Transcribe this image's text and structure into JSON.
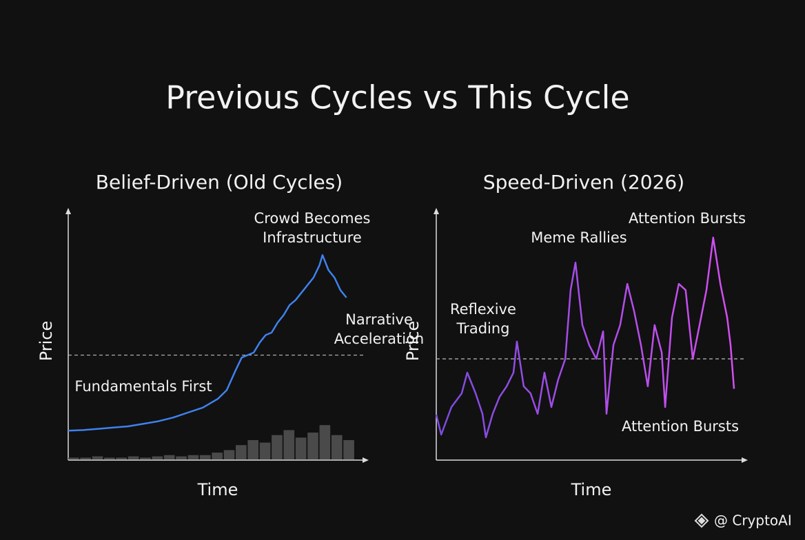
{
  "title": "Previous Cycles vs This Cycle",
  "watermark": "@ CryptoAI",
  "chart_data": [
    {
      "type": "line",
      "title": "Belief-Driven (Old Cycles)",
      "xlabel": "Time",
      "ylabel": "Price",
      "annotations": [
        [
          "Crowd Becomes",
          "Infrastructure"
        ],
        [
          "Narrative",
          "Acceleration"
        ],
        [
          "Fundamentals First"
        ]
      ],
      "color": "#3f82ee",
      "xlim": [
        0,
        100
      ],
      "ylim": [
        0,
        100
      ],
      "reference_line": 42,
      "x": [
        0,
        5,
        10,
        15,
        20,
        25,
        30,
        35,
        40,
        45,
        50,
        53,
        56,
        58,
        60,
        62,
        64,
        66,
        68,
        70,
        72,
        74,
        76,
        78,
        80,
        82,
        84,
        85,
        87,
        89,
        91,
        93
      ],
      "values": [
        11.8,
        12,
        12.5,
        13,
        13.5,
        14.5,
        15.5,
        17,
        19,
        21,
        24.5,
        28,
        36,
        41,
        42,
        43,
        47,
        50,
        51,
        55,
        58,
        62,
        64,
        67,
        70,
        73,
        78,
        82,
        76,
        73,
        68,
        65
      ],
      "volume": {
        "color": "#4a4a4a",
        "x": [
          0,
          4,
          8,
          12,
          16,
          20,
          24,
          28,
          32,
          36,
          40,
          44,
          48,
          52,
          56,
          60,
          64,
          68,
          72,
          76,
          80,
          84,
          88,
          92
        ],
        "values": [
          1,
          1,
          1.5,
          1,
          1,
          1.5,
          1,
          1.5,
          2,
          1.5,
          2,
          2,
          3,
          4,
          6,
          8,
          7,
          10,
          12,
          9,
          11,
          14,
          10,
          8
        ]
      }
    },
    {
      "type": "line",
      "title": "Speed-Driven (2026)",
      "xlabel": "Time",
      "ylabel": "Price",
      "annotations": [
        [
          "Attention Bursts"
        ],
        [
          "Meme Rallies"
        ],
        [
          "Reflexive",
          "Trading"
        ],
        [
          "Attention Bursts"
        ]
      ],
      "gradient": [
        "#7b4be0",
        "#d64ff2"
      ],
      "xlim": [
        0,
        100
      ],
      "ylim": [
        0,
        100
      ],
      "reference_line": 40.5,
      "x": [
        0,
        1.6,
        4.9,
        8.2,
        10,
        12.7,
        14.9,
        16,
        18.2,
        20.4,
        22.7,
        24.9,
        26,
        28.2,
        30.4,
        32.7,
        34.9,
        37.1,
        39.3,
        41.6,
        43.3,
        44.9,
        47.1,
        49.3,
        51.6,
        53.8,
        54.9,
        57.1,
        59.3,
        61.6,
        63.8,
        66,
        68.2,
        70.4,
        72.7,
        73.8,
        76,
        78.2,
        80.4,
        82.7,
        84.9,
        87.1,
        89.3,
        91.6,
        93.8,
        94.9,
        96
      ],
      "values": [
        18.2,
        10.2,
        21.2,
        26.7,
        35,
        26.7,
        18.5,
        9.1,
        18.5,
        25.3,
        29.5,
        35,
        47.4,
        29.5,
        26.7,
        18.5,
        35,
        21.2,
        32.2,
        40.5,
        68,
        79,
        54,
        46,
        40.5,
        51.5,
        18.5,
        46,
        54,
        70.5,
        59.5,
        46,
        29.5,
        54,
        43,
        21.2,
        57,
        70.5,
        68,
        40.5,
        54,
        68,
        89,
        70.5,
        57,
        46,
        28.5
      ]
    }
  ]
}
